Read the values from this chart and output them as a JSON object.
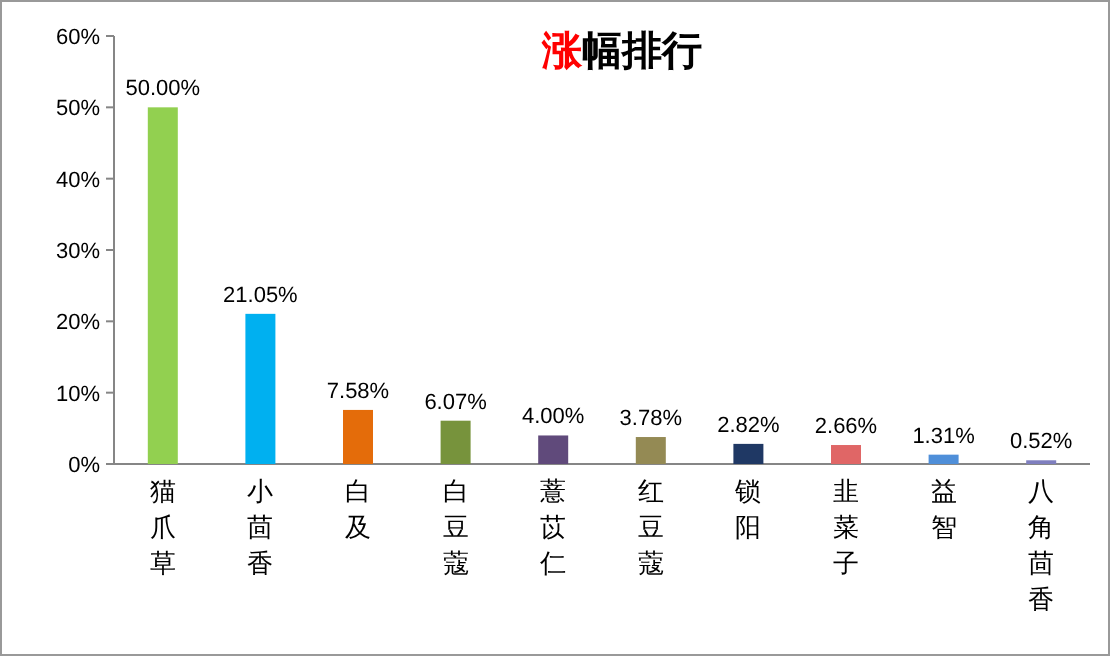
{
  "chart_data": {
    "type": "bar",
    "title": "涨幅排行",
    "categories": [
      "猫爪草",
      "小茴香",
      "白及",
      "白豆蔻",
      "薏苡仁",
      "红豆蔻",
      "锁阳",
      "韭菜子",
      "益智",
      "八角茴香"
    ],
    "values": [
      50.0,
      21.05,
      7.58,
      6.07,
      4.0,
      3.78,
      2.82,
      2.66,
      1.31,
      0.52
    ],
    "value_labels": [
      "50.00%",
      "21.05%",
      "7.58%",
      "6.07%",
      "4.00%",
      "3.78%",
      "2.82%",
      "2.66%",
      "1.31%",
      "0.52%"
    ],
    "colors": [
      "#92d050",
      "#00b0f0",
      "#e46c0a",
      "#77933c",
      "#604a7b",
      "#948a54",
      "#1f3864",
      "#e06666",
      "#4f8fd9",
      "#7f7fbf"
    ],
    "ylim": [
      0,
      60
    ],
    "yticks": [
      {
        "value": 0,
        "label": "0%"
      },
      {
        "value": 10,
        "label": "10%"
      },
      {
        "value": 20,
        "label": "20%"
      },
      {
        "value": 30,
        "label": "30%"
      },
      {
        "value": 40,
        "label": "40%"
      },
      {
        "value": 50,
        "label": "50%"
      },
      {
        "value": 60,
        "label": "60%"
      }
    ]
  }
}
